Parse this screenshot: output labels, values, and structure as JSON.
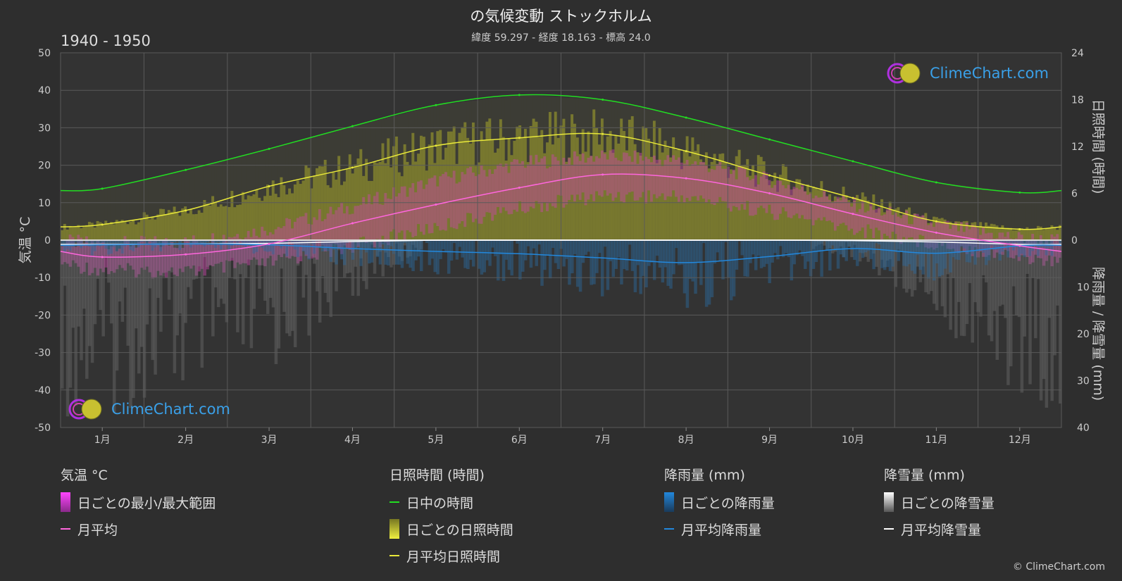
{
  "header": {
    "title": "の気候変動 ストックホルム",
    "subtitle": "緯度 59.297 - 経度 18.163 - 標高 24.0",
    "period": "1940 - 1950"
  },
  "brand": {
    "name": "ClimeChart.com",
    "copyright": "© ClimeChart.com"
  },
  "chart_data": {
    "type": "line",
    "categories": [
      "1月",
      "2月",
      "3月",
      "4月",
      "5月",
      "6月",
      "7月",
      "8月",
      "9月",
      "10月",
      "11月",
      "12月"
    ],
    "axes": {
      "left": {
        "label": "気温 °C",
        "min": -50,
        "max": 50,
        "ticks": [
          50,
          40,
          30,
          20,
          10,
          0,
          -10,
          -20,
          -30,
          -40,
          -50
        ]
      },
      "right_top": {
        "label": "日照時間 (時間)",
        "min": 0,
        "max": 24,
        "ticks": [
          24,
          18,
          12,
          6,
          0
        ]
      },
      "right_bottom": {
        "label": "降雨量 / 降雪量 (mm)",
        "min": 0,
        "max": 40,
        "ticks": [
          10,
          20,
          30,
          40
        ]
      }
    },
    "series": {
      "daylight_hours": [
        6.6,
        9.0,
        11.7,
        14.6,
        17.3,
        18.6,
        18.0,
        15.7,
        12.9,
        10.1,
        7.4,
        6.1
      ],
      "sunshine_hours_monthly_avg": [
        2.0,
        3.8,
        6.9,
        9.3,
        12.1,
        13.1,
        13.6,
        11.4,
        8.3,
        5.4,
        2.4,
        1.4
      ],
      "temp_monthly_avg": [
        -4.5,
        -3.8,
        -1.0,
        4.5,
        9.5,
        14.0,
        17.5,
        16.5,
        12.5,
        7.0,
        2.0,
        -1.5
      ],
      "temp_daily_max_avg": [
        -1.0,
        -0.5,
        3.0,
        9.0,
        16.0,
        20.5,
        22.5,
        21.0,
        16.0,
        9.5,
        4.0,
        0.5
      ],
      "temp_daily_min_avg": [
        -8.0,
        -8.5,
        -6.0,
        -1.5,
        3.5,
        8.5,
        12.0,
        11.5,
        7.5,
        3.0,
        -1.0,
        -4.5
      ],
      "rain_monthly_avg_mm": [
        1.0,
        0.8,
        1.0,
        1.8,
        2.4,
        2.9,
        3.8,
        4.8,
        3.5,
        1.8,
        2.8,
        1.2
      ],
      "snow_monthly_avg_mm": [
        0.9,
        0.8,
        0.7,
        0.3,
        0.0,
        0.0,
        0.0,
        0.0,
        0.0,
        0.1,
        0.4,
        0.9
      ]
    },
    "colors": {
      "daylight": "#22dd22",
      "sunshine_avg": "#e8e83a",
      "sunshine_daily": "#a8a82a",
      "temp_avg": "#ff66dd",
      "temp_range": "#cc44aa",
      "rain_avg": "#2288dd",
      "rain_daily": "#2a6aa0",
      "snow_avg": "#ffffff",
      "snow_daily": "#888888"
    },
    "grid": true
  },
  "legend": {
    "temp": {
      "heading": "気温 °C",
      "range": "日ごとの最小/最大範囲",
      "avg": "月平均"
    },
    "sun": {
      "heading": "日照時間 (時間)",
      "daylight": "日中の時間",
      "daily": "日ごとの日照時間",
      "avg": "月平均日照時間"
    },
    "rain": {
      "heading": "降雨量 (mm)",
      "daily": "日ごとの降雨量",
      "avg": "月平均降雨量"
    },
    "snow": {
      "heading": "降雪量 (mm)",
      "daily": "日ごとの降雪量",
      "avg": "月平均降雪量"
    }
  }
}
